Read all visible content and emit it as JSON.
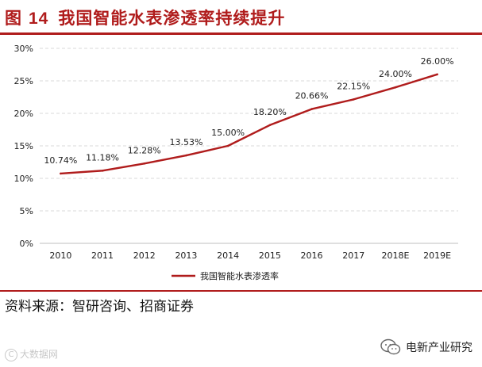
{
  "figure": {
    "label": "图",
    "number": "14",
    "title": "我国智能水表渗透率持续提升"
  },
  "source": "资料来源：智研咨询、招商证券",
  "watermark_left": "大数据网",
  "watermark_right": "电新产业研究",
  "colors": {
    "accent": "#b01c1c",
    "grid": "#d9d9d9",
    "text": "#222222"
  },
  "chart_data": {
    "type": "line",
    "title": "",
    "xlabel": "",
    "ylabel": "",
    "categories": [
      "2010",
      "2011",
      "2012",
      "2013",
      "2014",
      "2015",
      "2016",
      "2017",
      "2018E",
      "2019E"
    ],
    "series": [
      {
        "name": "我国智能水表渗透率",
        "values": [
          10.74,
          11.18,
          12.28,
          13.53,
          15.0,
          18.2,
          20.66,
          22.15,
          24.0,
          26.0
        ],
        "labels": [
          "10.74%",
          "11.18%",
          "12.28%",
          "13.53%",
          "15.00%",
          "18.20%",
          "20.66%",
          "22.15%",
          "24.00%",
          "26.00%"
        ]
      }
    ],
    "ylim": [
      0,
      30
    ],
    "yticks": [
      0,
      5,
      10,
      15,
      20,
      25,
      30
    ],
    "ytick_labels": [
      "0%",
      "5%",
      "10%",
      "15%",
      "20%",
      "25%",
      "30%"
    ],
    "grid": true,
    "legend": "bottom-center"
  }
}
